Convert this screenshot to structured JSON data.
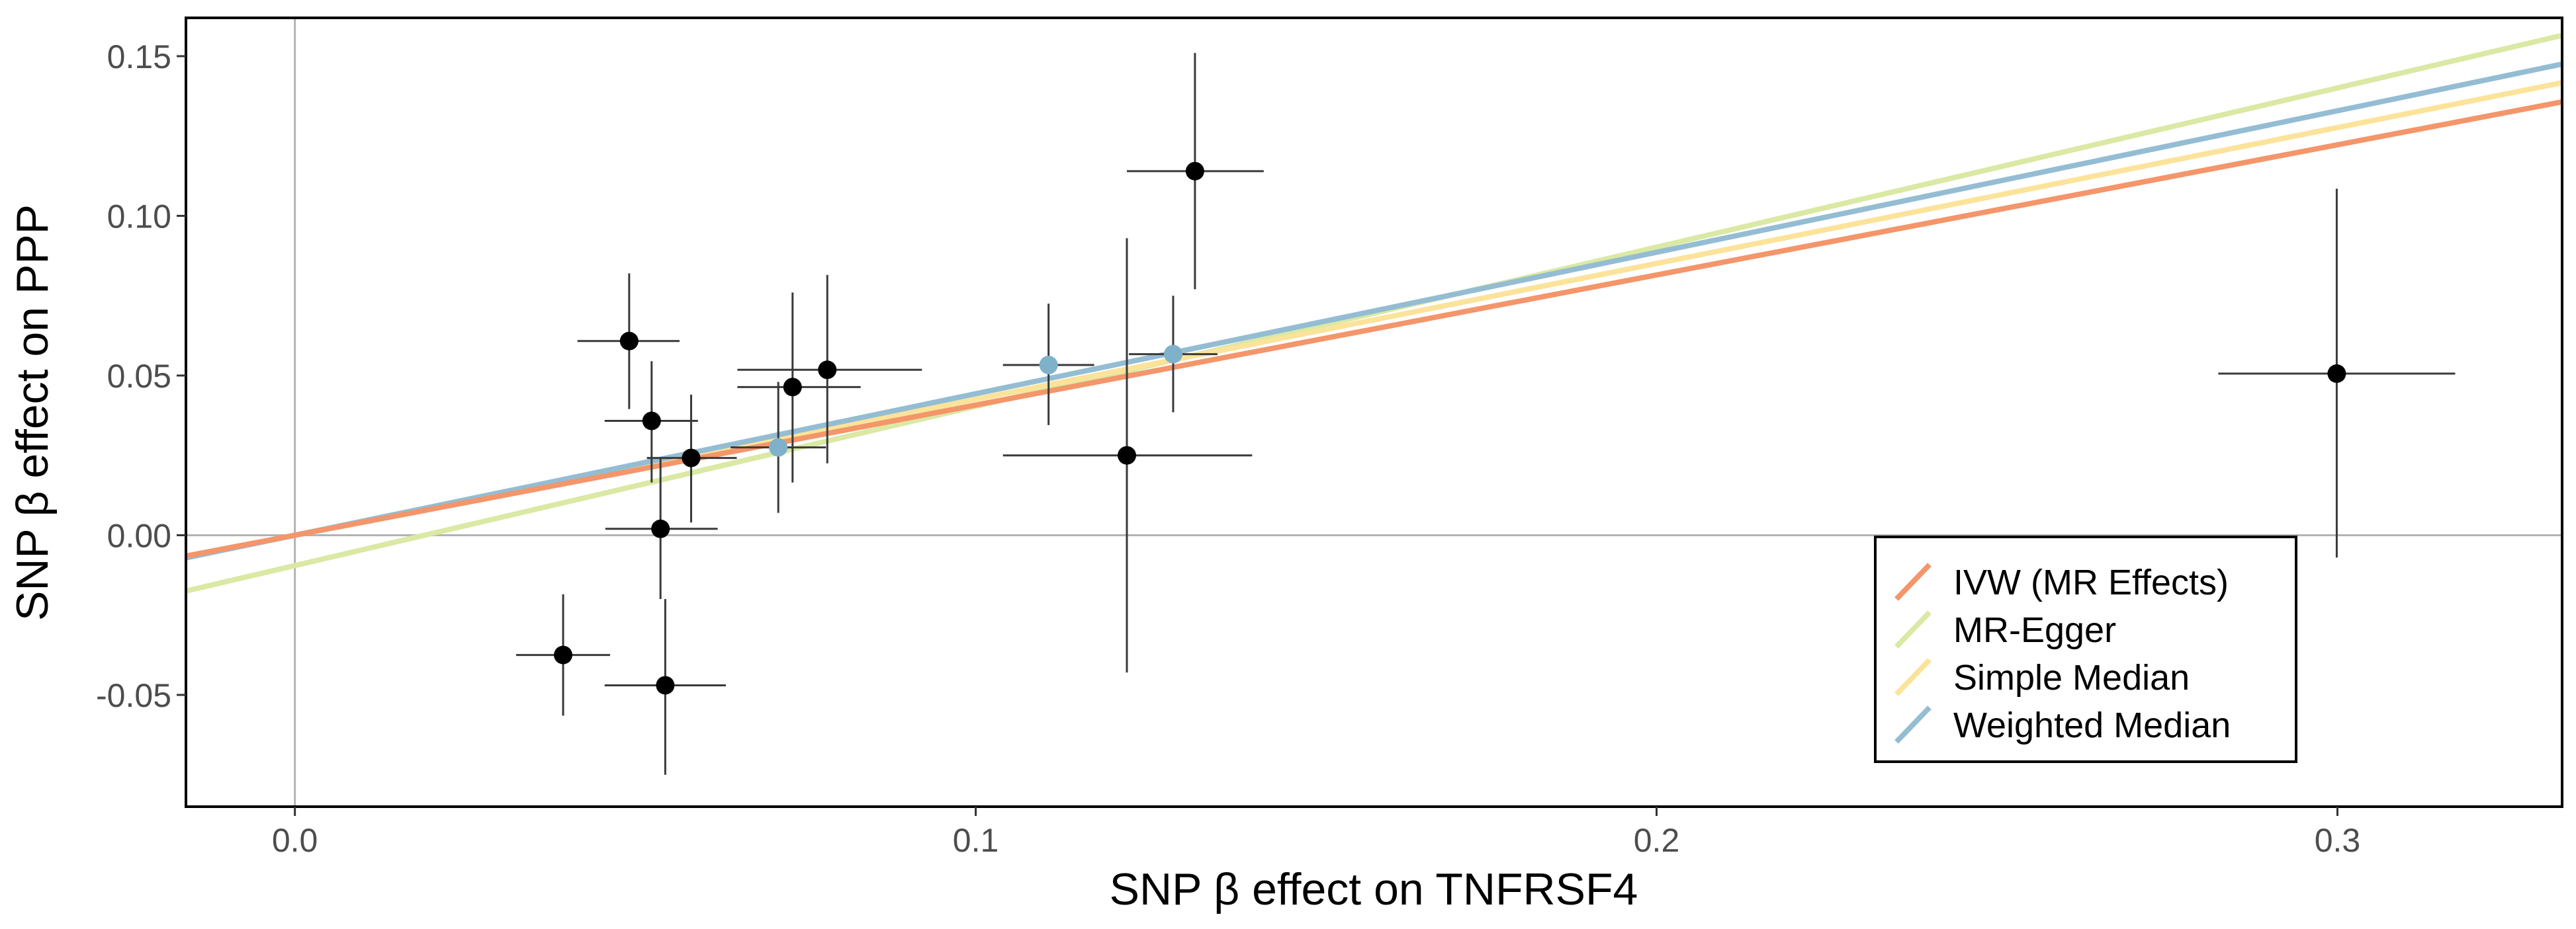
{
  "chart_data": {
    "type": "scatter",
    "xlabel": "SNP β effect on TNFRSF4",
    "ylabel": "SNP β effect on PPP",
    "xlim": [
      -0.016,
      0.333
    ],
    "ylim": [
      -0.085,
      0.162
    ],
    "x_ticks": [
      0.0,
      0.1,
      0.2,
      0.3
    ],
    "x_tick_labels": [
      "0.0",
      "0.1",
      "0.2",
      "0.3"
    ],
    "y_ticks": [
      -0.05,
      0.0,
      0.05,
      0.1,
      0.15
    ],
    "y_tick_labels": [
      "-0.05",
      "0.00",
      "0.05",
      "0.10",
      "0.15"
    ],
    "grid": false,
    "reference_lines": {
      "x": 0,
      "y": 0
    },
    "legend_position": "bottom-right",
    "points": [
      {
        "x": 0.0394,
        "y": -0.0375,
        "x_lo": 0.0325,
        "x_hi": 0.0463,
        "y_lo": -0.0565,
        "y_hi": -0.0185,
        "highlight": false
      },
      {
        "x": 0.0491,
        "y": 0.0608,
        "x_lo": 0.0415,
        "x_hi": 0.0565,
        "y_lo": 0.0395,
        "y_hi": 0.082,
        "highlight": false
      },
      {
        "x": 0.0524,
        "y": 0.0358,
        "x_lo": 0.0455,
        "x_hi": 0.0592,
        "y_lo": 0.0165,
        "y_hi": 0.0545,
        "highlight": false
      },
      {
        "x": 0.0537,
        "y": 0.002,
        "x_lo": 0.0456,
        "x_hi": 0.0621,
        "y_lo": -0.02,
        "y_hi": 0.024,
        "highlight": false
      },
      {
        "x": 0.0544,
        "y": -0.047,
        "x_lo": 0.0455,
        "x_hi": 0.0633,
        "y_lo": -0.075,
        "y_hi": -0.02,
        "highlight": false
      },
      {
        "x": 0.0582,
        "y": 0.0242,
        "x_lo": 0.0517,
        "x_hi": 0.0649,
        "y_lo": 0.004,
        "y_hi": 0.044,
        "highlight": false
      },
      {
        "x": 0.071,
        "y": 0.0275,
        "x_lo": 0.064,
        "x_hi": 0.078,
        "y_lo": 0.007,
        "y_hi": 0.048,
        "highlight": true
      },
      {
        "x": 0.0731,
        "y": 0.0464,
        "x_lo": 0.065,
        "x_hi": 0.0831,
        "y_lo": 0.0165,
        "y_hi": 0.076,
        "highlight": false
      },
      {
        "x": 0.0782,
        "y": 0.0518,
        "x_lo": 0.065,
        "x_hi": 0.0921,
        "y_lo": 0.0225,
        "y_hi": 0.0815,
        "highlight": false
      },
      {
        "x": 0.1107,
        "y": 0.0533,
        "x_lo": 0.104,
        "x_hi": 0.1174,
        "y_lo": 0.0345,
        "y_hi": 0.0725,
        "highlight": true
      },
      {
        "x": 0.1222,
        "y": 0.025,
        "x_lo": 0.104,
        "x_hi": 0.1406,
        "y_lo": -0.043,
        "y_hi": 0.093,
        "highlight": false
      },
      {
        "x": 0.129,
        "y": 0.0567,
        "x_lo": 0.1225,
        "x_hi": 0.1355,
        "y_lo": 0.0385,
        "y_hi": 0.075,
        "highlight": true
      },
      {
        "x": 0.1322,
        "y": 0.114,
        "x_lo": 0.1222,
        "x_hi": 0.1423,
        "y_lo": 0.077,
        "y_hi": 0.151,
        "highlight": false
      },
      {
        "x": 0.2999,
        "y": 0.0506,
        "x_lo": 0.2825,
        "x_hi": 0.3173,
        "y_lo": -0.007,
        "y_hi": 0.1085,
        "highlight": false
      }
    ],
    "series": [
      {
        "name": "IVW (MR Effects)",
        "intercept": 0.0,
        "slope": 0.4075,
        "color": "#F4956A"
      },
      {
        "name": "MR-Egger",
        "intercept": -0.0095,
        "slope": 0.4985,
        "color": "#DAE9A3"
      },
      {
        "name": "Simple Median",
        "intercept": 0.0,
        "slope": 0.4255,
        "color": "#FBE39A"
      },
      {
        "name": "Weighted Median",
        "intercept": 0.0,
        "slope": 0.443,
        "color": "#94BDD3"
      }
    ],
    "colors": {
      "point": "#000000",
      "point_highlight": "#7FB1CA",
      "errorbar": "#3a3a3a",
      "reference_line": "#b3b3b3",
      "panel_border": "#000000"
    }
  }
}
